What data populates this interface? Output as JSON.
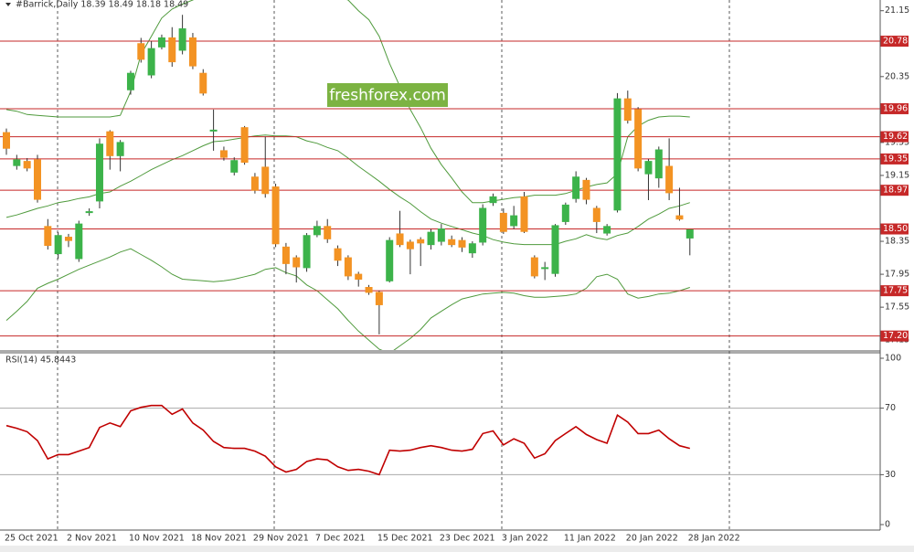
{
  "chart_data": [
    {
      "type": "candlestick",
      "title": "#Barrick,Daily  18.39 18.49 18.18 18.49",
      "categories": [
        "25 Oct 2021",
        null,
        null,
        null,
        null,
        null,
        "2 Nov 2021",
        null,
        null,
        null,
        null,
        null,
        "10 Nov 2021",
        null,
        null,
        null,
        null,
        null,
        "18 Nov 2021",
        null,
        null,
        null,
        null,
        null,
        "29 Nov 2021",
        null,
        null,
        null,
        null,
        null,
        "7 Dec 2021",
        null,
        null,
        null,
        null,
        null,
        "15 Dec 2021",
        null,
        null,
        null,
        null,
        null,
        "23 Dec 2021",
        null,
        null,
        null,
        null,
        null,
        "3 Jan 2022",
        null,
        null,
        null,
        null,
        null,
        "11 Jan 2022",
        null,
        null,
        null,
        null,
        null,
        "20 Jan 2022",
        null,
        null,
        null,
        null,
        null,
        "28 Jan 2022"
      ],
      "open": [
        19.67,
        19.27,
        19.32,
        19.34,
        18.53,
        18.2,
        18.4,
        18.14,
        18.7,
        18.84,
        19.68,
        19.39,
        20.19,
        20.75,
        20.37,
        20.71,
        20.82,
        20.67,
        20.82,
        20.39,
        19.7,
        19.45,
        19.19,
        19.73,
        19.13,
        19.25,
        19.01,
        18.28,
        18.15,
        18.03,
        18.43,
        18.53,
        18.26,
        18.15,
        17.95,
        17.79,
        17.73,
        17.87,
        18.44,
        18.34,
        18.37,
        18.31,
        18.35,
        18.37,
        18.36,
        18.21,
        18.34,
        18.82,
        18.69,
        18.54,
        18.89,
        18.15,
        18.02,
        17.96,
        18.59,
        18.87,
        19.09,
        18.75,
        18.45,
        18.73,
        20.08,
        19.95,
        19.17,
        19.12,
        19.26,
        18.66,
        18.39
      ],
      "high": [
        19.72,
        19.4,
        19.36,
        19.4,
        18.62,
        18.46,
        18.44,
        18.6,
        18.75,
        19.6,
        19.7,
        19.58,
        20.42,
        20.82,
        20.78,
        20.86,
        20.95,
        21.1,
        20.88,
        20.44,
        19.95,
        19.5,
        19.37,
        19.75,
        19.18,
        19.62,
        19.05,
        18.33,
        18.18,
        18.45,
        18.6,
        18.62,
        18.3,
        18.18,
        17.98,
        17.82,
        17.75,
        18.4,
        18.72,
        18.37,
        18.4,
        18.5,
        18.56,
        18.42,
        18.4,
        18.35,
        18.8,
        18.93,
        18.75,
        18.78,
        18.95,
        18.18,
        18.1,
        18.56,
        18.82,
        19.2,
        19.12,
        18.78,
        18.56,
        20.15,
        20.18,
        19.98,
        19.35,
        19.5,
        19.6,
        19.0,
        18.49
      ],
      "low": [
        19.4,
        19.22,
        19.2,
        18.82,
        18.25,
        18.14,
        18.28,
        18.1,
        18.66,
        18.75,
        19.22,
        19.2,
        20.13,
        20.52,
        20.33,
        20.68,
        20.47,
        20.62,
        20.44,
        20.12,
        19.45,
        19.33,
        19.15,
        19.28,
        18.93,
        18.88,
        18.28,
        17.95,
        17.85,
        17.98,
        18.4,
        18.33,
        18.05,
        17.88,
        17.8,
        17.7,
        17.22,
        17.85,
        18.28,
        17.95,
        18.05,
        18.25,
        18.3,
        18.28,
        18.22,
        18.15,
        18.3,
        18.78,
        18.44,
        18.5,
        18.45,
        17.9,
        17.88,
        17.92,
        18.55,
        18.82,
        18.8,
        18.45,
        18.42,
        18.7,
        19.78,
        19.2,
        18.85,
        19.0,
        18.85,
        18.6,
        18.18
      ],
      "close": [
        19.48,
        19.34,
        19.24,
        18.86,
        18.3,
        18.42,
        18.36,
        18.56,
        18.71,
        19.53,
        19.39,
        19.55,
        20.39,
        20.56,
        20.69,
        20.82,
        20.53,
        20.93,
        20.48,
        20.15,
        19.7,
        19.37,
        19.33,
        19.31,
        18.97,
        18.93,
        18.32,
        18.08,
        18.04,
        18.42,
        18.53,
        18.38,
        18.12,
        17.93,
        17.89,
        17.73,
        17.58,
        18.36,
        18.31,
        18.26,
        18.33,
        18.46,
        18.5,
        18.31,
        18.28,
        18.32,
        18.75,
        18.89,
        18.47,
        18.66,
        18.47,
        17.93,
        18.03,
        18.54,
        18.79,
        19.13,
        18.86,
        18.59,
        18.53,
        20.08,
        19.82,
        19.24,
        19.32,
        19.46,
        18.94,
        18.62,
        18.49
      ],
      "up_color": "#3cb34a",
      "down_color": "#f39323",
      "bands": {
        "color": "#4f9a3c",
        "upper": [
          19.95,
          19.93,
          19.89,
          19.88,
          19.87,
          19.86,
          19.86,
          19.86,
          19.86,
          19.86,
          19.86,
          19.88,
          20.17,
          20.62,
          20.84,
          21.06,
          21.17,
          21.23,
          21.28,
          21.34,
          21.4,
          21.44,
          21.46,
          21.47,
          21.47,
          21.46,
          21.45,
          21.44,
          21.42,
          21.4,
          21.38,
          21.37,
          21.32,
          21.28,
          21.15,
          21.04,
          20.84,
          20.51,
          20.23,
          19.95,
          19.73,
          19.48,
          19.28,
          19.12,
          18.95,
          18.82,
          18.82,
          18.84,
          18.86,
          18.88,
          18.89,
          18.91,
          18.91,
          18.91,
          18.93,
          18.97,
          19.01,
          19.04,
          19.06,
          19.17,
          19.62,
          19.75,
          19.82,
          19.86,
          19.87,
          19.87,
          19.86
        ],
        "middle": [
          18.64,
          18.67,
          18.71,
          18.75,
          18.78,
          18.82,
          18.84,
          18.87,
          18.89,
          18.93,
          18.95,
          19.02,
          19.08,
          19.15,
          19.22,
          19.28,
          19.34,
          19.39,
          19.45,
          19.51,
          19.56,
          19.57,
          19.59,
          19.61,
          19.63,
          19.64,
          19.63,
          19.63,
          19.62,
          19.57,
          19.54,
          19.49,
          19.45,
          19.36,
          19.26,
          19.17,
          19.08,
          18.98,
          18.89,
          18.81,
          18.71,
          18.62,
          18.57,
          18.53,
          18.49,
          18.45,
          18.42,
          18.37,
          18.34,
          18.32,
          18.31,
          18.31,
          18.31,
          18.31,
          18.35,
          18.38,
          18.43,
          18.39,
          18.37,
          18.42,
          18.45,
          18.53,
          18.62,
          18.68,
          18.75,
          18.78,
          18.82
        ],
        "lower": [
          17.39,
          17.5,
          17.62,
          17.78,
          17.84,
          17.89,
          17.95,
          18.01,
          18.06,
          18.11,
          18.16,
          18.22,
          18.26,
          18.19,
          18.12,
          18.04,
          17.95,
          17.89,
          17.88,
          17.87,
          17.86,
          17.87,
          17.89,
          17.92,
          17.95,
          18.01,
          18.03,
          17.97,
          17.93,
          17.82,
          17.75,
          17.64,
          17.53,
          17.39,
          17.26,
          17.15,
          17.04,
          16.99,
          17.08,
          17.17,
          17.28,
          17.42,
          17.5,
          17.58,
          17.65,
          17.68,
          17.71,
          17.72,
          17.73,
          17.72,
          17.69,
          17.67,
          17.67,
          17.68,
          17.69,
          17.71,
          17.78,
          17.92,
          17.95,
          17.89,
          17.71,
          17.66,
          17.68,
          17.71,
          17.72,
          17.75,
          17.79
        ]
      },
      "levels": [
        20.78,
        19.96,
        19.62,
        19.35,
        18.97,
        {
          "value": 18.5,
          "label": "18.50"
        },
        17.75,
        {
          "value": 17.2,
          "label": "17.20"
        }
      ],
      "level_color": "#c62828",
      "ylim": [
        17.03,
        21.28
      ],
      "yticks": [
        21.15,
        20.35,
        19.55,
        19.15,
        18.35,
        17.95,
        17.55,
        17.15
      ],
      "watermark": "freshforex.com"
    },
    {
      "type": "line",
      "title": "RSI(14) 45.8443",
      "color": "#c00000",
      "values": [
        59.5,
        57.9,
        55.8,
        50.5,
        39.5,
        42.1,
        42.1,
        44.2,
        46.3,
        58.4,
        61.1,
        58.9,
        68.4,
        70.5,
        71.6,
        71.6,
        66.3,
        69.5,
        61.1,
        56.8,
        50.0,
        46.3,
        45.8,
        45.8,
        44.2,
        41.1,
        34.7,
        31.6,
        33.2,
        37.9,
        39.5,
        38.9,
        34.7,
        32.6,
        33.2,
        32.1,
        30.0,
        44.7,
        44.2,
        44.7,
        46.3,
        47.4,
        46.3,
        44.7,
        44.2,
        45.3,
        54.7,
        56.3,
        47.9,
        51.6,
        48.9,
        40.0,
        42.6,
        50.5,
        54.7,
        58.9,
        54.2,
        51.1,
        48.9,
        65.8,
        61.6,
        54.7,
        54.7,
        56.8,
        51.6,
        47.4,
        45.8443
      ],
      "levels": [
        70,
        30
      ],
      "ylim": [
        0,
        100
      ],
      "yticks": [
        100,
        70,
        30,
        0
      ]
    }
  ]
}
